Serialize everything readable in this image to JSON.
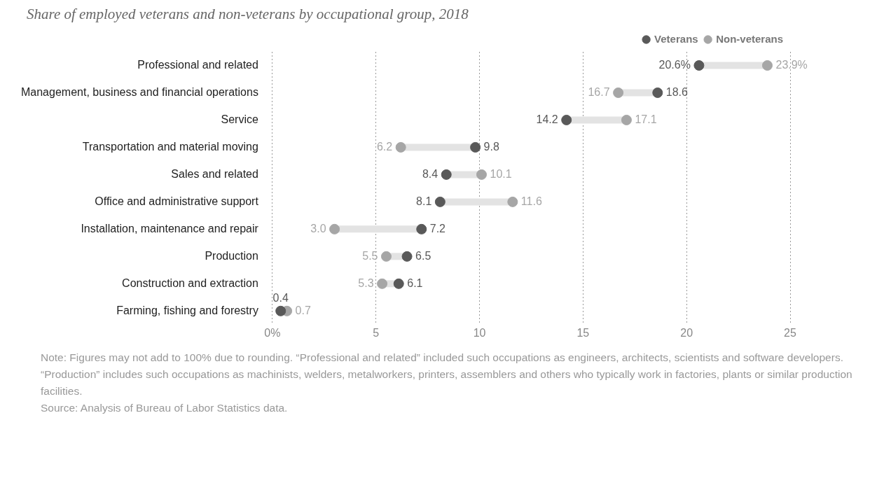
{
  "chart_data": {
    "type": "scatter",
    "orientation": "horizontal",
    "title": "Share of employed veterans and non-veterans by occupational group, 2018",
    "categories": [
      "Professional and related",
      "Management, business and financial operations",
      "Service",
      "Transportation and material moving",
      "Sales and related",
      "Office and administrative support",
      "Installation, maintenance and repair",
      "Production",
      "Construction and extraction",
      "Farming, fishing and forestry"
    ],
    "series": [
      {
        "name": "Veterans",
        "color": "#595959",
        "values": [
          20.6,
          18.6,
          14.2,
          9.8,
          8.4,
          8.1,
          7.2,
          6.5,
          6.1,
          0.4
        ],
        "value_labels": [
          "20.6%",
          "18.6",
          "14.2",
          "9.8",
          "8.4",
          "8.1",
          "7.2",
          "6.5",
          "6.1",
          "0.4"
        ]
      },
      {
        "name": "Non-veterans",
        "color": "#a6a6a6",
        "values": [
          23.9,
          16.7,
          17.1,
          6.2,
          10.1,
          11.6,
          3.0,
          5.5,
          5.3,
          0.7
        ],
        "value_labels": [
          "23.9%",
          "16.7",
          "17.1",
          "6.2",
          "10.1",
          "11.6",
          "3.0",
          "5.5",
          "5.3",
          "0.7"
        ]
      }
    ],
    "xlim": [
      0,
      25
    ],
    "xticks": [
      {
        "value": 0,
        "label": "0%"
      },
      5,
      10,
      15,
      20,
      25
    ],
    "grid": "x",
    "legend": "top right",
    "marker": "circle",
    "annotations": [
      "Note: Figures may not add to 100% due to rounding. “Professional and related” included such occupations as engineers, architects, scientists and software developers. “Production” includes such occupations as machinists, welders, metalworkers, printers, assemblers and others who typically work in factories, plants or similar production facilities.",
      "Source: Analysis of Bureau of Labor Statistics data."
    ]
  }
}
